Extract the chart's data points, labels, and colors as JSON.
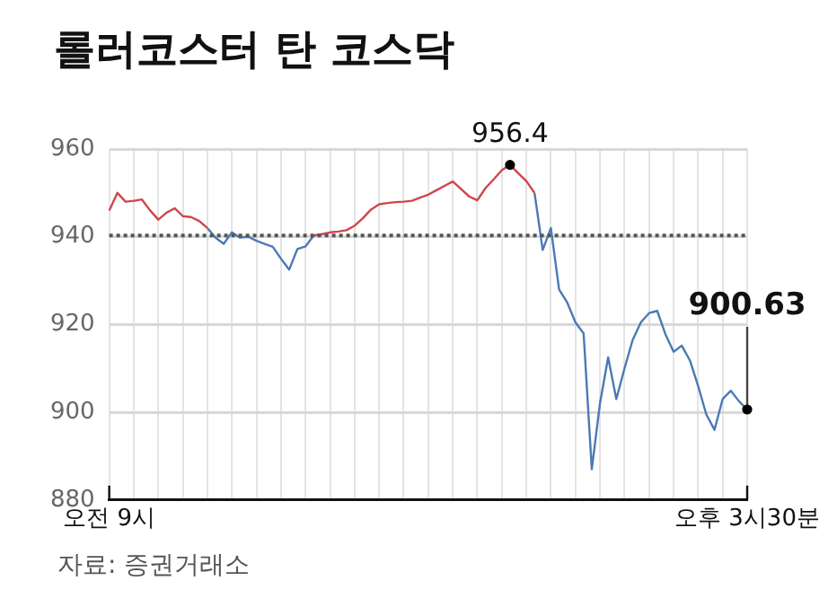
{
  "chart_data": {
    "type": "line",
    "title": "롤러코스터 탄 코스닥",
    "categories": [
      "오전 9시",
      null,
      null,
      null,
      null,
      null,
      null,
      null,
      null,
      null,
      null,
      null,
      null,
      null,
      null,
      null,
      null,
      null,
      null,
      null,
      null,
      null,
      null,
      null,
      null,
      null,
      null,
      null,
      null,
      null,
      null,
      null,
      null,
      null,
      null,
      null,
      null,
      null,
      null,
      null,
      null,
      null,
      null,
      null,
      null,
      null,
      null,
      null,
      null,
      null,
      null,
      null,
      null,
      null,
      null,
      null,
      null,
      null,
      null,
      null,
      null,
      null,
      null,
      null,
      null,
      null,
      null,
      null,
      null,
      null,
      null,
      null,
      null,
      null,
      null,
      null,
      null,
      null,
      "오후 3시30분"
    ],
    "series": [
      {
        "color": "#d0454c",
        "value_labels": [
          null,
          null,
          null,
          null,
          null,
          null,
          null,
          null,
          null,
          null,
          null,
          null,
          null,
          null,
          null,
          null,
          null,
          null,
          null,
          null,
          null,
          null,
          null,
          null,
          null,
          null,
          null,
          null,
          null,
          null,
          null,
          null,
          null,
          null,
          null,
          null,
          null,
          null,
          null,
          null,
          null,
          null,
          null,
          null,
          null,
          null,
          null,
          null,
          null,
          "956.4",
          null,
          null,
          null,
          null,
          null,
          null,
          null,
          null,
          null,
          null,
          null,
          null,
          null,
          null,
          null,
          null,
          null,
          null,
          null,
          null,
          null,
          null,
          null,
          null,
          null,
          null,
          null,
          null,
          null
        ],
        "values": [
          946.0,
          950.0,
          948.0,
          948.2,
          948.5,
          946.0,
          943.9,
          945.5,
          946.5,
          944.7,
          944.5,
          943.6,
          942.0,
          null,
          null,
          null,
          null,
          null,
          null,
          null,
          null,
          null,
          null,
          null,
          null,
          940.3,
          940.6,
          941.0,
          941.2,
          941.5,
          942.5,
          944.2,
          946.2,
          947.4,
          947.7,
          947.9,
          948.0,
          948.2,
          948.9,
          949.6,
          950.6,
          951.6,
          952.6,
          950.9,
          949.2,
          948.3,
          951.1,
          953.1,
          955.2,
          956.4,
          954.5,
          952.7,
          950.0,
          null,
          null,
          null,
          null,
          null,
          null,
          null,
          null,
          null,
          null,
          null,
          null,
          null,
          null,
          null,
          null,
          null,
          null,
          null,
          null,
          null,
          null,
          null,
          null,
          null,
          null
        ]
      },
      {
        "color": "#4a7ab5",
        "value_labels": [
          null,
          null,
          null,
          null,
          null,
          null,
          null,
          null,
          null,
          null,
          null,
          null,
          null,
          null,
          null,
          null,
          null,
          null,
          null,
          null,
          null,
          null,
          null,
          null,
          null,
          null,
          null,
          null,
          null,
          null,
          null,
          null,
          null,
          null,
          null,
          null,
          null,
          null,
          null,
          null,
          null,
          null,
          null,
          null,
          null,
          null,
          null,
          null,
          null,
          null,
          null,
          null,
          null,
          null,
          null,
          null,
          null,
          null,
          null,
          null,
          null,
          null,
          null,
          null,
          null,
          null,
          null,
          null,
          null,
          null,
          null,
          null,
          null,
          null,
          null,
          null,
          null,
          null,
          "900.63"
        ],
        "values": [
          null,
          null,
          null,
          null,
          null,
          null,
          null,
          null,
          null,
          null,
          null,
          null,
          942.0,
          939.8,
          938.4,
          941.0,
          939.8,
          940.0,
          939.1,
          938.4,
          937.7,
          935.0,
          932.5,
          937.2,
          937.8,
          940.3,
          null,
          null,
          null,
          null,
          null,
          null,
          null,
          null,
          null,
          null,
          null,
          null,
          null,
          null,
          null,
          null,
          null,
          null,
          null,
          null,
          null,
          null,
          null,
          null,
          null,
          null,
          950.0,
          937.0,
          942.0,
          928.0,
          925.0,
          920.5,
          918.0,
          887.0,
          902.0,
          912.5,
          903.0,
          910.0,
          916.5,
          920.5,
          922.6,
          923.1,
          917.8,
          913.8,
          915.2,
          911.8,
          906.0,
          899.5,
          896.0,
          903.0,
          904.9,
          902.5,
          900.63
        ]
      }
    ],
    "ylim": [
      880,
      960
    ],
    "yticks": [
      880,
      900,
      920,
      940,
      960
    ],
    "grid": true,
    "marker": "none",
    "line_style": "solid",
    "ref_lines": [
      {
        "axis": "y",
        "value": 940.3,
        "color": "#555555",
        "line_style": "dotted"
      }
    ],
    "annotations": [
      "자료: 증권거래소"
    ]
  }
}
